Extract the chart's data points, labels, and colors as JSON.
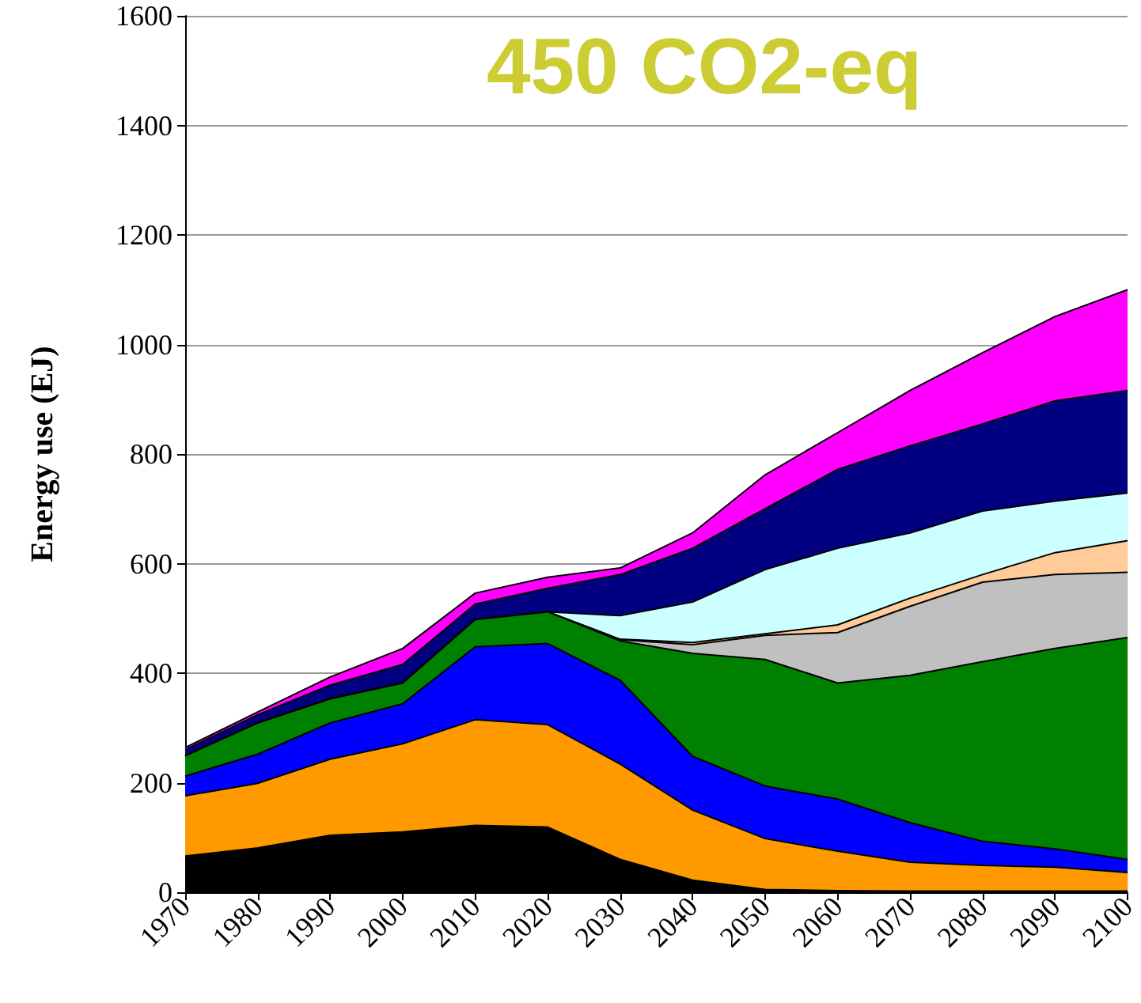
{
  "chart_data": {
    "type": "area",
    "title": "450 CO2-eq",
    "ylabel": "Energy use (EJ)",
    "stacked": true,
    "grid": "y",
    "x": [
      1970,
      1980,
      1990,
      2000,
      2010,
      2020,
      2030,
      2040,
      2050,
      2060,
      2070,
      2080,
      2090,
      2100
    ],
    "xlim": [
      1970,
      2100
    ],
    "xticks": [
      1970,
      1980,
      1990,
      2000,
      2010,
      2020,
      2030,
      2040,
      2050,
      2060,
      2070,
      2080,
      2090,
      2100
    ],
    "ylim": [
      0,
      1600
    ],
    "yticks": [
      0,
      200,
      400,
      600,
      800,
      1000,
      1200,
      1400,
      1600
    ],
    "series": [
      {
        "color": "#000000",
        "values": [
          66,
          81,
          104,
          110,
          122,
          119,
          60,
          22,
          5,
          3,
          2,
          2,
          2,
          2
        ]
      },
      {
        "color": "#ff9900",
        "values": [
          110,
          118,
          139,
          161,
          193,
          187,
          174,
          128,
          93,
          72,
          53,
          47,
          44,
          34
        ]
      },
      {
        "color": "#0000ff",
        "values": [
          36,
          53,
          66,
          73,
          133,
          148,
          153,
          98,
          96,
          95,
          72,
          44,
          33,
          24
        ]
      },
      {
        "color": "#008000",
        "values": [
          37,
          57,
          44,
          38,
          50,
          58,
          72,
          188,
          231,
          212,
          269,
          328,
          366,
          405
        ]
      },
      {
        "color": "#c0c0c0",
        "values": [
          0,
          0,
          0,
          0,
          0,
          0,
          2,
          16,
          44,
          92,
          126,
          145,
          135,
          119
        ]
      },
      {
        "color": "#ffcc99",
        "values": [
          0,
          0,
          0,
          0,
          0,
          0,
          1,
          4,
          3,
          14,
          15,
          14,
          40,
          58
        ]
      },
      {
        "color": "#ccffff",
        "values": [
          0,
          0,
          0,
          0,
          0,
          0,
          43,
          74,
          117,
          140,
          119,
          116,
          94,
          87
        ]
      },
      {
        "color": "#000080",
        "values": [
          11,
          15,
          25,
          34,
          28,
          43,
          75,
          98,
          111,
          144,
          159,
          159,
          183,
          187
        ]
      },
      {
        "color": "#ff00ff",
        "values": [
          4,
          5,
          15,
          29,
          20,
          20,
          12,
          28,
          62,
          67,
          101,
          130,
          154,
          184
        ]
      }
    ]
  }
}
